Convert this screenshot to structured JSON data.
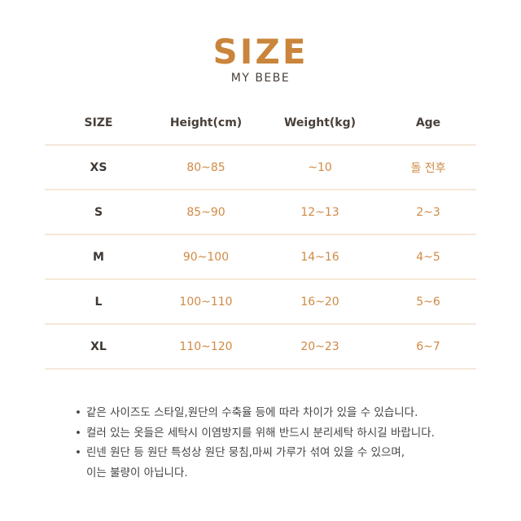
{
  "header": {
    "title": "SIZE",
    "subtitle": "MY BEBE"
  },
  "table": {
    "columns": [
      "SIZE",
      "Height(cm)",
      "Weight(kg)",
      "Age"
    ],
    "rows": [
      [
        "XS",
        "80~85",
        "~10",
        "돌 전후"
      ],
      [
        "S",
        "85~90",
        "12~13",
        "2~3"
      ],
      [
        "M",
        "90~100",
        "14~16",
        "4~5"
      ],
      [
        "L",
        "100~110",
        "16~20",
        "5~6"
      ],
      [
        "XL",
        "110~120",
        "20~23",
        "6~7"
      ]
    ]
  },
  "notes": [
    "같은 사이즈도 스타일,원단의 수축율 등에 따라 차이가 있을 수 있습니다.",
    "컬러 있는 옷들은 세탁시 이염방지를 위해 반드시 분리세탁 하시길 바랍니다.",
    "린넨 원단 등 원단 특성상 원단 뭉침,마씨 가루가 섞여 있을 수 있으며,"
  ],
  "notes_continuation": "이는 불량이 아닙니다.",
  "colors": {
    "accent": "#c9853c",
    "value": "#d08a45",
    "text": "#4a403a",
    "divider": "#f6e7d8"
  }
}
